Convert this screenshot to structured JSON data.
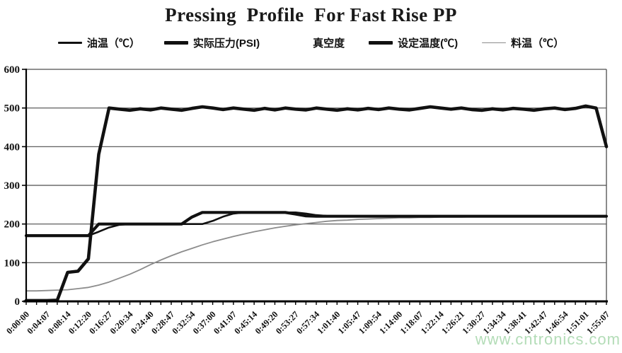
{
  "watermark": {
    "text": "www.cntronics.com",
    "color": "#a6d7ab"
  },
  "colors": {
    "background": "#ffffff",
    "text": "#111111",
    "grid": "#4d4d4d",
    "axis": "#000000",
    "series_black": "#111111",
    "series_gray": "#8c8c8c",
    "watermark_green": "#a6d7ab"
  },
  "chart_data": {
    "type": "line",
    "title": "Pressing  Profile  For Fast Rise PP",
    "xlabel": "",
    "ylabel": "",
    "ylim": [
      0,
      600
    ],
    "y_ticks": [
      0,
      100,
      200,
      300,
      400,
      500,
      600
    ],
    "grid": "horizontal-solid",
    "legend_position": "top",
    "x_is_time": true,
    "samples_per_label_interval": 2,
    "x_tick_labels": [
      "0:00:00",
      "0:04:07",
      "0:08:14",
      "0:12:20",
      "0:16:27",
      "0:20:34",
      "0:24:40",
      "0:28:47",
      "0:32:54",
      "0:37:00",
      "0:41:07",
      "0:45:14",
      "0:49:20",
      "0:53:27",
      "0:57:34",
      "1:01:40",
      "1:05:47",
      "1:09:54",
      "1:14:00",
      "1:18:07",
      "1:22:14",
      "1:26:21",
      "1:30:27",
      "1:34:34",
      "1:38:41",
      "1:42:47",
      "1:46:54",
      "1:51:01",
      "1:55:07"
    ],
    "series": [
      {
        "id": "oil-temp",
        "name": "油温（℃）",
        "color": "#111111",
        "width": 2.6,
        "visible": true,
        "values": [
          170,
          170,
          170,
          170,
          170,
          170,
          170,
          180,
          191,
          198,
          200,
          200,
          200,
          200,
          200,
          200,
          200,
          200,
          208,
          219,
          227,
          230,
          230,
          230,
          230,
          230,
          230,
          227,
          223,
          221,
          220,
          220,
          220,
          220,
          220,
          220,
          220,
          220,
          220,
          220,
          220,
          220,
          220,
          220,
          220,
          220,
          220,
          220,
          220,
          220,
          220,
          220,
          220,
          220,
          220,
          220,
          220
        ]
      },
      {
        "id": "actual-pressure",
        "name": "实际压力(PSI)",
        "color": "#111111",
        "width": 4.6,
        "visible": true,
        "values": [
          2,
          2,
          2,
          3,
          75,
          78,
          110,
          380,
          500,
          497,
          494,
          498,
          495,
          500,
          497,
          494,
          499,
          503,
          500,
          496,
          500,
          497,
          494,
          499,
          495,
          500,
          497,
          495,
          500,
          497,
          494,
          498,
          495,
          499,
          496,
          500,
          497,
          495,
          499,
          503,
          500,
          497,
          500,
          496,
          494,
          498,
          495,
          499,
          497,
          494,
          498,
          500,
          496,
          499,
          505,
          500,
          400
        ]
      },
      {
        "id": "vacuum",
        "name": "真空度",
        "color": "#ffffff",
        "width": 2.6,
        "visible": false,
        "values": []
      },
      {
        "id": "set-temp",
        "name": "设定温度(℃)",
        "color": "#111111",
        "width": 4.2,
        "visible": true,
        "values": [
          170,
          170,
          170,
          170,
          170,
          170,
          170,
          200,
          200,
          200,
          200,
          200,
          200,
          200,
          200,
          200,
          218,
          230,
          230,
          230,
          230,
          230,
          230,
          230,
          230,
          230,
          226,
          221,
          220,
          220,
          220,
          220,
          220,
          220,
          220,
          220,
          220,
          220,
          220,
          220,
          220,
          220,
          220,
          220,
          220,
          220,
          220,
          220,
          220,
          220,
          220,
          220,
          220,
          220,
          220,
          220,
          220
        ]
      },
      {
        "id": "material-temp",
        "name": "料温（℃）",
        "color": "#8c8c8c",
        "width": 1.8,
        "visible": true,
        "values": [
          27,
          27,
          28,
          29,
          30,
          33,
          36,
          42,
          50,
          60,
          70,
          82,
          95,
          107,
          118,
          128,
          137,
          146,
          154,
          161,
          168,
          174,
          180,
          185,
          190,
          194,
          198,
          201,
          204,
          207,
          209,
          210,
          212,
          213,
          214,
          215,
          216,
          216,
          217,
          217,
          218,
          218,
          218,
          219,
          219,
          219,
          219,
          219,
          219,
          220,
          220,
          220,
          220,
          220,
          220,
          220,
          220
        ]
      }
    ]
  }
}
